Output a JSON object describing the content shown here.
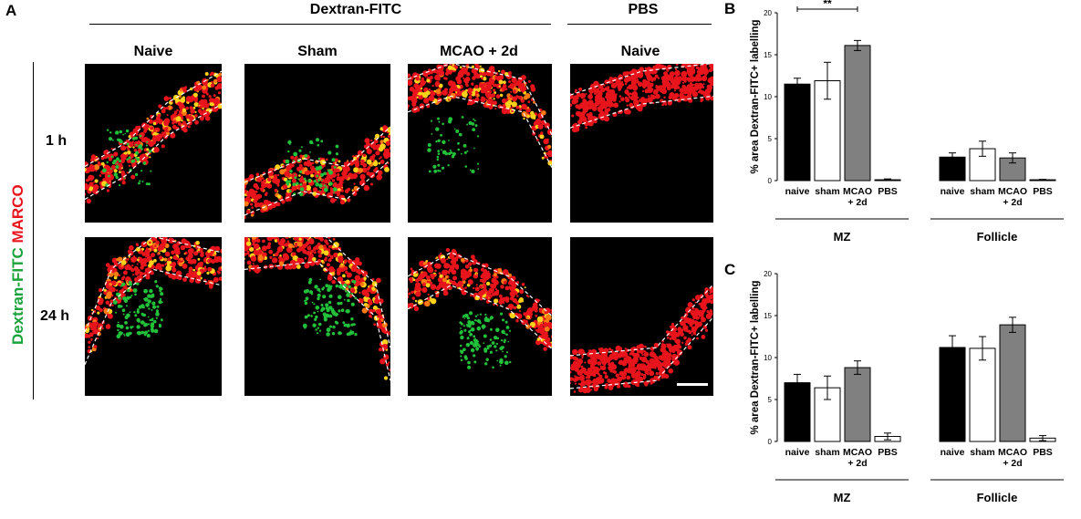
{
  "panel_a": {
    "letter": "A",
    "group_labels": [
      "Dextran-FITC",
      "PBS"
    ],
    "column_labels": [
      "Naive",
      "Sham",
      "MCAO + 2d",
      "Naive"
    ],
    "row_labels": [
      "1 h",
      "24 h"
    ],
    "side_label_green": "Dextran-FITC",
    "side_label_red": "MARCO",
    "colors": {
      "green": "#1aa33a",
      "red": "#e8141c"
    }
  },
  "chart_data": [
    {
      "panel": "B",
      "type": "bar",
      "ylabel": "% area Dextran-FITC+ labelling",
      "ylim": [
        0,
        20
      ],
      "yticks": [
        "0",
        "5",
        "10",
        "15",
        "20"
      ],
      "groups": [
        {
          "name": "MZ",
          "categories": [
            "naive",
            "sham",
            "MCAO\n+ 2d",
            "PBS"
          ],
          "values": [
            11.5,
            11.9,
            16.1,
            0.1
          ],
          "errors": [
            0.7,
            2.2,
            0.6,
            0.1
          ]
        },
        {
          "name": "Follicle",
          "categories": [
            "naive",
            "sham",
            "MCAO\n+ 2d",
            "PBS"
          ],
          "values": [
            2.8,
            3.8,
            2.7,
            0.1
          ],
          "errors": [
            0.5,
            0.9,
            0.6,
            0.05
          ]
        }
      ],
      "bar_colors": [
        "#000000",
        "#ffffff",
        "#808080",
        "#ffffff"
      ],
      "significance": {
        "label": "**",
        "between": [
          "naive",
          "MCAO + 2d"
        ],
        "group": "MZ"
      }
    },
    {
      "panel": "C",
      "type": "bar",
      "ylabel": "% area Dextran-FITC+ labelling",
      "ylim": [
        0,
        20
      ],
      "yticks": [
        "0",
        "5",
        "10",
        "15",
        "20"
      ],
      "groups": [
        {
          "name": "MZ",
          "categories": [
            "naive",
            "sham",
            "MCAO\n+ 2d",
            "PBS"
          ],
          "values": [
            7.0,
            6.4,
            8.8,
            0.6
          ],
          "errors": [
            1.0,
            1.4,
            0.8,
            0.4
          ]
        },
        {
          "name": "Follicle",
          "categories": [
            "naive",
            "sham",
            "MCAO\n+ 2d",
            "PBS"
          ],
          "values": [
            11.2,
            11.1,
            13.9,
            0.4
          ],
          "errors": [
            1.4,
            1.4,
            0.9,
            0.3
          ]
        }
      ],
      "bar_colors": [
        "#000000",
        "#ffffff",
        "#808080",
        "#ffffff"
      ]
    }
  ]
}
